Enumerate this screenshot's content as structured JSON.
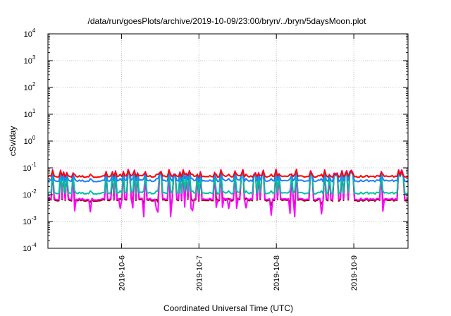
{
  "chart_data": {
    "type": "line",
    "title": "/data/run/goesPlots/archive/2019-10-09/23:00/bryn/../bryn/5daysMoon.plot",
    "xlabel": "Coordinated Universal Time (UTC)",
    "ylabel": "cSv/day",
    "y_scale": "log",
    "ylim": [
      0.0001,
      10000
    ],
    "yticks": [
      {
        "base": "10",
        "exp": "4",
        "value": 10000
      },
      {
        "base": "10",
        "exp": "3",
        "value": 1000
      },
      {
        "base": "10",
        "exp": "2",
        "value": 100
      },
      {
        "base": "10",
        "exp": "1",
        "value": 10
      },
      {
        "base": "10",
        "exp": "0",
        "value": 1
      },
      {
        "base": "10",
        "exp": "-1",
        "value": 0.1
      },
      {
        "base": "10",
        "exp": "-2",
        "value": 0.01
      },
      {
        "base": "10",
        "exp": "-3",
        "value": 0.001
      },
      {
        "base": "10",
        "exp": "-4",
        "value": 0.0001
      }
    ],
    "xlim": [
      0,
      4.65
    ],
    "xticks": [
      {
        "label": "2019-10-6",
        "value": 0.95
      },
      {
        "label": "2019-10-7",
        "value": 1.95
      },
      {
        "label": "2019-10-8",
        "value": 2.95
      },
      {
        "label": "2019-10-9",
        "value": 3.95
      }
    ],
    "grid": true,
    "series": [
      {
        "color": "#8b0000",
        "base": 0.0062,
        "spike": 0.085,
        "low": 0.0058
      },
      {
        "color": "#ff00ff",
        "base": 0.0068,
        "spike": 0.09,
        "low": 0.0025
      },
      {
        "color": "#00bfa0",
        "base": 0.0115,
        "spike": 0.075,
        "low": 0.009
      },
      {
        "color": "#1f7fff",
        "base": 0.033,
        "spike": 0.08,
        "low": 0.025
      },
      {
        "color": "#ff0000",
        "base": 0.048,
        "spike": 0.085,
        "low": 0.038
      }
    ]
  }
}
